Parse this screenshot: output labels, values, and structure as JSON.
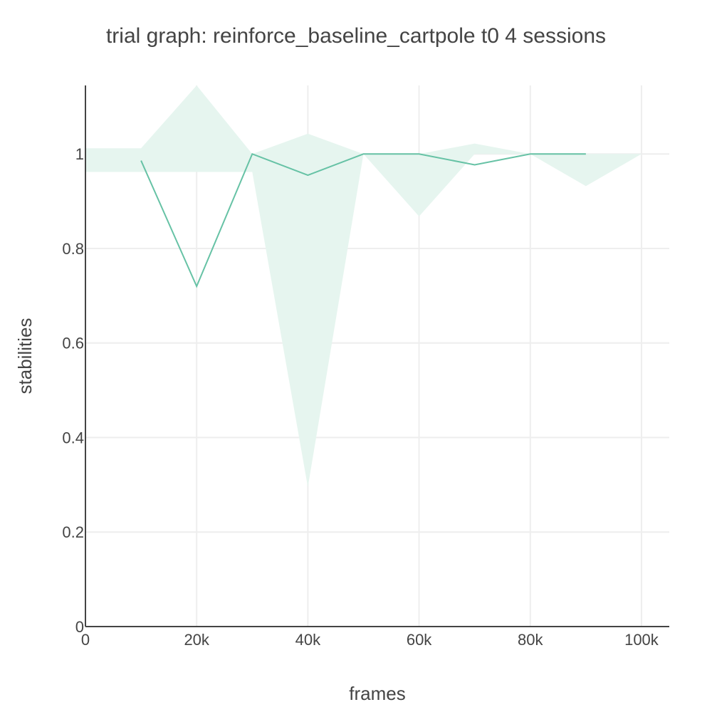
{
  "chart_data": {
    "type": "line",
    "title": "trial graph: reinforce_baseline_cartpole t0 4 sessions",
    "xlabel": "frames",
    "ylabel": "stabilities",
    "xlim": [
      0,
      105000
    ],
    "ylim": [
      0,
      1.145
    ],
    "x_ticks": [
      0,
      20000,
      40000,
      60000,
      80000,
      100000
    ],
    "x_tick_labels": [
      "0",
      "20k",
      "40k",
      "60k",
      "80k",
      "100k"
    ],
    "y_ticks": [
      0,
      0.2,
      0.4,
      0.6,
      0.8,
      1
    ],
    "y_tick_labels": [
      "0",
      "0.2",
      "0.4",
      "0.6",
      "0.8",
      "1"
    ],
    "grid": true,
    "colors": {
      "line": "#66c2a5",
      "band": "#e6f5ef",
      "grid": "#eeeeee",
      "axis": "#444444"
    },
    "series": [
      {
        "x": [
          10000,
          20000,
          30000,
          40000,
          50000,
          60000,
          70000,
          80000,
          90000
        ],
        "values": [
          0.986,
          0.72,
          1.0,
          0.955,
          1.0,
          1.0,
          0.977,
          1.0,
          1.0
        ]
      }
    ],
    "band": {
      "x": [
        0,
        10000,
        20000,
        30000,
        40000,
        50000,
        60000,
        70000,
        80000,
        90000,
        100000
      ],
      "upper": [
        1.012,
        1.012,
        1.145,
        1.0,
        1.043,
        1.0,
        1.0,
        1.022,
        1.0,
        1.0,
        1.0
      ],
      "lower": [
        0.962,
        0.962,
        0.962,
        0.962,
        0.295,
        1.0,
        0.868,
        1.0,
        1.0,
        0.932,
        1.0
      ]
    }
  }
}
